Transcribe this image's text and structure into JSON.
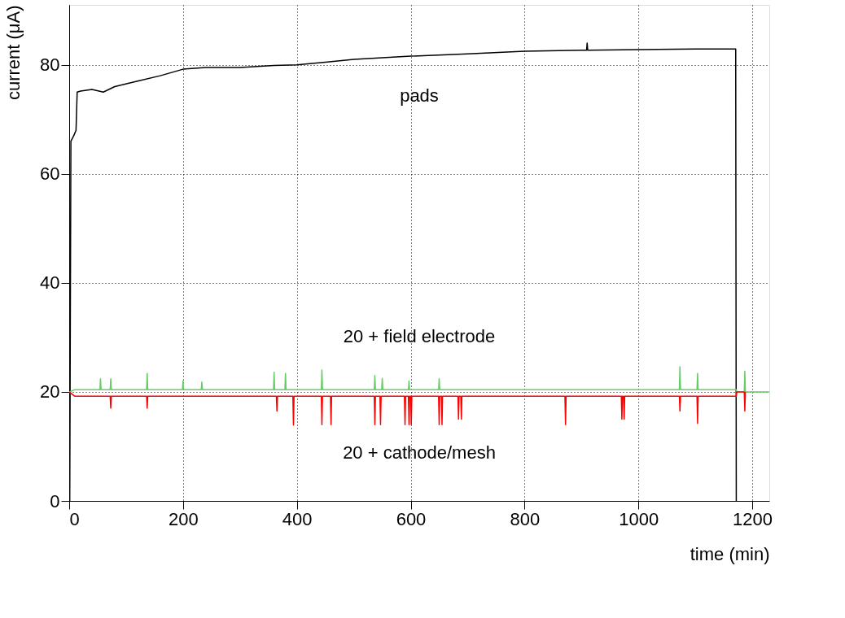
{
  "chart_data": {
    "type": "line",
    "xlabel": "time (min)",
    "ylabel": "current (μA)",
    "xlim": [
      0,
      1230
    ],
    "ylim": [
      0,
      91
    ],
    "xticks": [
      0,
      200,
      400,
      600,
      800,
      1000,
      1200
    ],
    "yticks": [
      0,
      20,
      40,
      60,
      80
    ],
    "grid": true,
    "marker": "none",
    "line_style": "solid",
    "series": [
      {
        "name": "pads",
        "color": "#000000",
        "x": [
          0,
          1,
          2,
          3,
          8,
          12,
          14,
          20,
          40,
          60,
          80,
          120,
          160,
          200,
          240,
          300,
          360,
          400,
          450,
          500,
          600,
          700,
          800,
          900,
          909,
          910,
          911,
          1000,
          1100,
          1171,
          1172
        ],
        "values": [
          0,
          0,
          34,
          66,
          67,
          68,
          75,
          75.2,
          75.5,
          75,
          76,
          77,
          78,
          79.2,
          79.5,
          79.5,
          79.9,
          80,
          80.5,
          81,
          81.6,
          82,
          82.5,
          82.7,
          82.7,
          84,
          82.7,
          82.8,
          82.9,
          82.9,
          0
        ]
      },
      {
        "name": "20 + field electrode",
        "color": "#66cc66",
        "x": [
          0,
          10,
          54,
          55,
          56,
          72,
          73,
          74,
          136,
          137,
          138,
          199,
          200,
          201,
          232,
          233,
          234,
          359,
          360,
          361,
          379,
          380,
          381,
          443,
          444,
          445,
          536,
          537,
          538,
          549,
          550,
          551,
          596,
          597,
          598,
          649,
          650,
          651,
          1072,
          1073,
          1074,
          1103,
          1104,
          1105,
          1172,
          1173,
          1186,
          1187,
          1188,
          1230
        ],
        "values": [
          20,
          20.4,
          20.4,
          22.4,
          20.4,
          20.4,
          22.4,
          20.4,
          20.4,
          23.4,
          20.4,
          20.4,
          22,
          20.4,
          20.4,
          21.8,
          20.4,
          20.4,
          23.6,
          20.4,
          20.4,
          23.4,
          20.4,
          20.4,
          24,
          20.4,
          20.4,
          23,
          20.4,
          20.4,
          22.5,
          20.4,
          20.4,
          22,
          20.4,
          20.4,
          22.4,
          20.4,
          20.4,
          24.6,
          20.4,
          20.4,
          23.4,
          20.4,
          20.4,
          20,
          20,
          23.8,
          20,
          20
        ]
      },
      {
        "name": "20 + cathode/mesh",
        "color": "#ff0000",
        "x": [
          0,
          10,
          72,
          73,
          74,
          136,
          137,
          138,
          364,
          365,
          366,
          393,
          394,
          395,
          443,
          444,
          445,
          459,
          460,
          461,
          536,
          537,
          538,
          546,
          547,
          548,
          589,
          590,
          591,
          596,
          597,
          598,
          600,
          601,
          602,
          649,
          650,
          651,
          654,
          655,
          656,
          683,
          684,
          685,
          688,
          689,
          690,
          871,
          872,
          873,
          970,
          971,
          972,
          974,
          975,
          976,
          1072,
          1073,
          1074,
          1103,
          1104,
          1105,
          1172,
          1173,
          1186,
          1187,
          1188
        ],
        "values": [
          20,
          19.2,
          19.2,
          17,
          19.2,
          19.2,
          17,
          19.2,
          19.2,
          16.5,
          19.2,
          19.2,
          13.9,
          19.2,
          19.2,
          14,
          19.2,
          19.2,
          14,
          19.2,
          19.2,
          14,
          19.2,
          19.2,
          14,
          19.2,
          19.2,
          14,
          19.2,
          19.2,
          14,
          19.2,
          19.2,
          14,
          19.2,
          19.2,
          14,
          19.2,
          19.2,
          14,
          19.2,
          19.2,
          15,
          19.2,
          19.2,
          15,
          19.2,
          19.2,
          14,
          19.2,
          19.2,
          15,
          19.2,
          19.2,
          15,
          19.2,
          19.2,
          16.5,
          19.2,
          19.2,
          14.2,
          19.2,
          19.2,
          20,
          20,
          16.5,
          20
        ]
      }
    ]
  }
}
